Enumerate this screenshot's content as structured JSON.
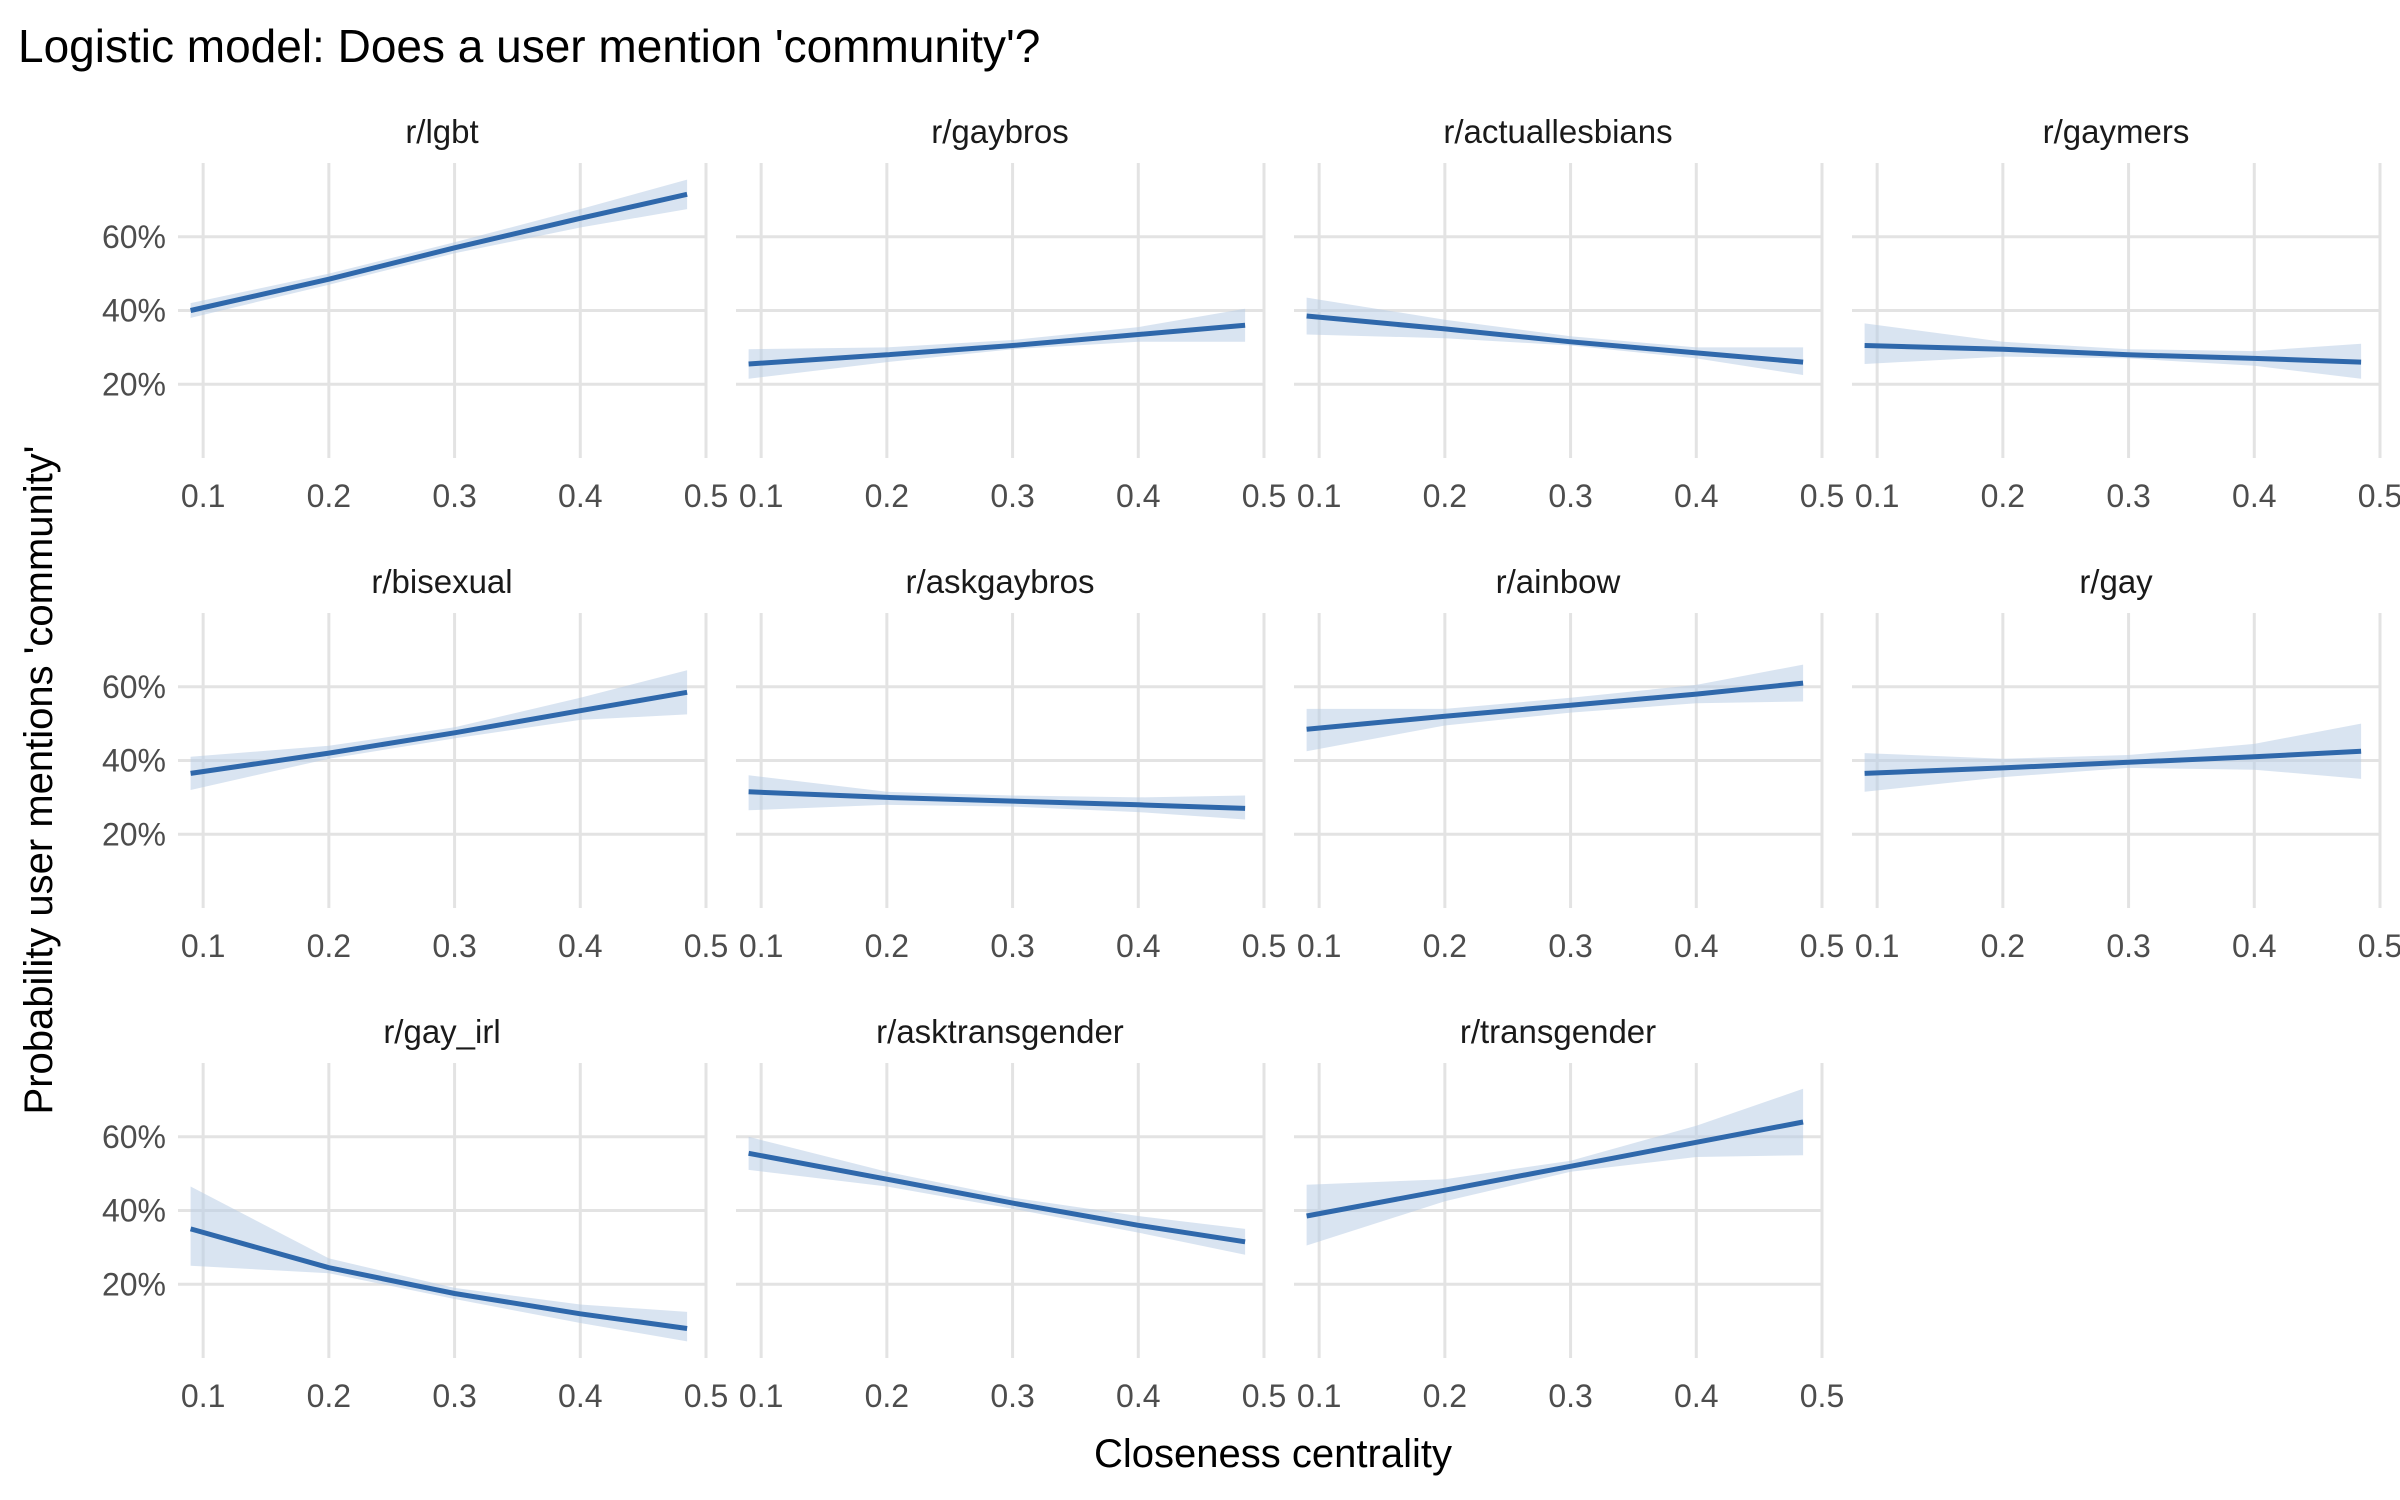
{
  "chart_data": {
    "type": "line",
    "title": "Logistic model: Does a user mention 'community'?",
    "xlabel": "Closeness centrality",
    "ylabel": "Probability user mentions 'community'",
    "xlim": [
      0.08,
      0.5
    ],
    "ylim": [
      0,
      80
    ],
    "x_ticks": [
      0.1,
      0.2,
      0.3,
      0.4,
      0.5
    ],
    "x_tick_labels": [
      "0.1",
      "0.2",
      "0.3",
      "0.4",
      "0.5"
    ],
    "y_ticks": [
      20,
      40,
      60
    ],
    "y_tick_labels": [
      "20%",
      "40%",
      "60%"
    ],
    "grid": true,
    "facet_layout": {
      "columns": 4,
      "rows": 3
    },
    "series_color": "#2F68AB",
    "band_color": "#B9CEE6",
    "panels": [
      {
        "name": "r/lgbt",
        "x": [
          0.09,
          0.2,
          0.3,
          0.4,
          0.485
        ],
        "y": [
          40,
          48.5,
          57,
          65,
          71.5
        ],
        "lower": [
          38,
          47,
          55.5,
          62.5,
          67.5
        ],
        "upper": [
          42,
          50,
          58.5,
          67.5,
          75.5
        ]
      },
      {
        "name": "r/gaybros",
        "x": [
          0.09,
          0.2,
          0.3,
          0.4,
          0.485
        ],
        "y": [
          25.5,
          28,
          30.5,
          33.5,
          36
        ],
        "lower": [
          21.5,
          26,
          29.5,
          31.5,
          31.5
        ],
        "upper": [
          29.5,
          30,
          32,
          35.5,
          40.5
        ]
      },
      {
        "name": "r/actuallesbians",
        "x": [
          0.09,
          0.2,
          0.3,
          0.4,
          0.485
        ],
        "y": [
          38.5,
          35,
          31.5,
          28.5,
          26
        ],
        "lower": [
          33.5,
          32.5,
          30.5,
          27,
          22.5
        ],
        "upper": [
          43.5,
          37.5,
          33,
          30,
          30
        ]
      },
      {
        "name": "r/gaymers",
        "x": [
          0.09,
          0.2,
          0.3,
          0.4,
          0.485
        ],
        "y": [
          30.5,
          29.5,
          28,
          27,
          26
        ],
        "lower": [
          25.5,
          27.5,
          27,
          25,
          21.5
        ],
        "upper": [
          36.5,
          31.5,
          29.5,
          29,
          31
        ]
      },
      {
        "name": "r/bisexual",
        "x": [
          0.09,
          0.2,
          0.3,
          0.4,
          0.485
        ],
        "y": [
          36.5,
          42,
          47.5,
          53.5,
          58.5
        ],
        "lower": [
          32,
          40.5,
          46,
          51,
          52.5
        ],
        "upper": [
          41,
          44,
          49,
          57,
          64.5
        ]
      },
      {
        "name": "r/askgaybros",
        "x": [
          0.09,
          0.2,
          0.3,
          0.4,
          0.485
        ],
        "y": [
          31.5,
          30,
          29,
          28,
          27
        ],
        "lower": [
          26.5,
          28,
          27.5,
          26,
          24
        ],
        "upper": [
          36,
          31.5,
          30.5,
          30,
          30.5
        ]
      },
      {
        "name": "r/ainbow",
        "x": [
          0.09,
          0.2,
          0.3,
          0.4,
          0.485
        ],
        "y": [
          48.5,
          52,
          55,
          58,
          61
        ],
        "lower": [
          42.5,
          49.5,
          53,
          55.5,
          56
        ],
        "upper": [
          54,
          54,
          57,
          60.5,
          66
        ]
      },
      {
        "name": "r/gay",
        "x": [
          0.09,
          0.2,
          0.3,
          0.4,
          0.485
        ],
        "y": [
          36.5,
          38,
          39.5,
          41,
          42.5
        ],
        "lower": [
          31.5,
          35.5,
          38,
          37.5,
          35
        ],
        "upper": [
          42,
          40.5,
          41.5,
          44.5,
          50
        ]
      },
      {
        "name": "r/gay_irl",
        "x": [
          0.09,
          0.2,
          0.3,
          0.4,
          0.485
        ],
        "y": [
          35,
          24.5,
          17.5,
          12,
          8
        ],
        "lower": [
          25,
          23,
          16,
          9.5,
          4.5
        ],
        "upper": [
          46.5,
          27,
          19,
          14.5,
          12.5
        ]
      },
      {
        "name": "r/asktransgender",
        "x": [
          0.09,
          0.2,
          0.3,
          0.4,
          0.485
        ],
        "y": [
          55.5,
          48.5,
          42,
          36,
          31.5
        ],
        "lower": [
          51,
          46.5,
          40.5,
          34,
          28
        ],
        "upper": [
          60,
          50.5,
          43.5,
          38.5,
          35
        ]
      },
      {
        "name": "r/transgender",
        "x": [
          0.09,
          0.2,
          0.3,
          0.4,
          0.485
        ],
        "y": [
          38.5,
          45.5,
          52,
          58.5,
          64
        ],
        "lower": [
          30.5,
          42.5,
          50.5,
          54.5,
          55
        ],
        "upper": [
          47,
          48.5,
          53.5,
          63,
          73
        ]
      }
    ]
  }
}
